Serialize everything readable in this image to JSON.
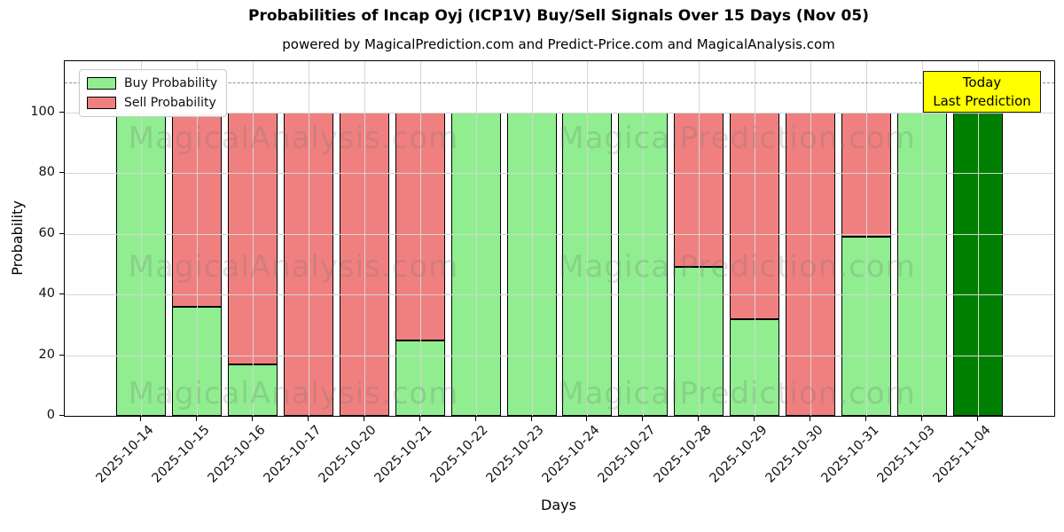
{
  "title": "Probabilities of Incap Oyj (ICP1V) Buy/Sell Signals Over 15 Days (Nov 05)",
  "subtitle": "powered by MagicalPrediction.com and Predict-Price.com and MagicalAnalysis.com",
  "axes": {
    "xlabel": "Days",
    "ylabel": "Probability"
  },
  "legend": {
    "items": [
      {
        "label": "Buy Probability",
        "color": "#90ee90"
      },
      {
        "label": "Sell Probability",
        "color": "#f08080"
      }
    ]
  },
  "today_box": {
    "line1": "Today",
    "line2": "Last Prediction",
    "bg_color": "#ffff00"
  },
  "watermarks": {
    "left": "MagicalAnalysis.com",
    "right": "MagicalPrediction.com"
  },
  "colors": {
    "buy": "#90ee90",
    "sell": "#f08080",
    "today_bar": "#008000",
    "bar_edge": "#000000",
    "grid": "#d6d6d6",
    "threshold": "#8c8c8c",
    "today_box_bg": "#ffff00"
  },
  "chart_data": {
    "type": "bar",
    "stacked": true,
    "title": "Probabilities of Incap Oyj (ICP1V) Buy/Sell Signals Over 15 Days (Nov 05)",
    "xlabel": "Days",
    "ylabel": "Probability",
    "categories": [
      "2025-10-14",
      "2025-10-15",
      "2025-10-16",
      "2025-10-17",
      "2025-10-20",
      "2025-10-21",
      "2025-10-22",
      "2025-10-23",
      "2025-10-24",
      "2025-10-27",
      "2025-10-28",
      "2025-10-29",
      "2025-10-30",
      "2025-10-31",
      "2025-11-03",
      "2025-11-04"
    ],
    "series": [
      {
        "name": "Buy Probability",
        "color": "#90ee90",
        "values": [
          100,
          36,
          17,
          0,
          0,
          25,
          100,
          100,
          100,
          100,
          49,
          32,
          0,
          59,
          100,
          100
        ]
      },
      {
        "name": "Sell Probability",
        "color": "#f08080",
        "values": [
          0,
          64,
          83,
          100,
          100,
          75,
          0,
          0,
          0,
          0,
          51,
          68,
          100,
          41,
          0,
          0
        ]
      }
    ],
    "today_index": 15,
    "yticks": [
      0,
      20,
      40,
      60,
      80,
      100
    ],
    "ylim": [
      0,
      117
    ],
    "threshold_line": {
      "value": 110,
      "style": "dashed"
    },
    "grid": true,
    "legend_position": "upper left"
  }
}
